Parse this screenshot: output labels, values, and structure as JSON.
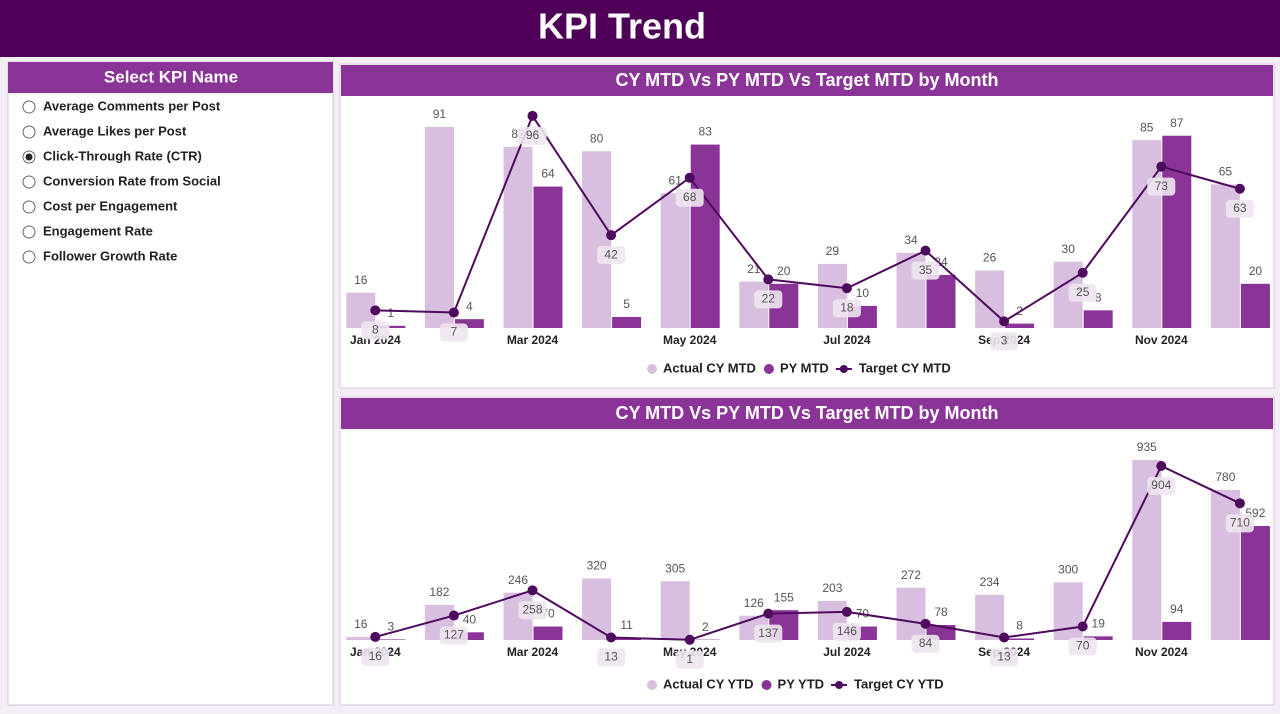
{
  "header": {
    "title": "KPI Trend"
  },
  "slicer": {
    "title": "Select KPI Name",
    "options": [
      "Average Comments per Post",
      "Average Likes per Post",
      "Click-Through Rate (CTR)",
      "Conversion Rate from Social",
      "Cost per Engagement",
      "Engagement Rate",
      "Follower Growth Rate"
    ],
    "selected": 2
  },
  "chart_data": [
    {
      "type": "combo",
      "title": "CY MTD Vs PY MTD Vs Target MTD by Month",
      "categories": [
        "Jan 2024",
        null,
        "Mar 2024",
        null,
        "May 2024",
        null,
        "Jul 2024",
        null,
        "Sep 2024",
        null,
        "Nov 2024",
        null
      ],
      "ylim": [
        0,
        100
      ],
      "series": [
        {
          "name": "Actual CY MTD",
          "type": "bar",
          "color": "#d8bfe0",
          "values": [
            16,
            91,
            82,
            80,
            61,
            21,
            29,
            34,
            26,
            30,
            85,
            65
          ]
        },
        {
          "name": "PY MTD",
          "type": "bar",
          "color": "#8a3498",
          "values": [
            1,
            4,
            64,
            5,
            83,
            20,
            10,
            24,
            2,
            8,
            87,
            20
          ]
        },
        {
          "name": "Target CY MTD",
          "type": "line",
          "color": "#4e0a5c",
          "values": [
            8,
            7,
            96,
            42,
            68,
            22,
            18,
            35,
            3,
            25,
            73,
            63
          ]
        }
      ]
    },
    {
      "type": "combo",
      "title": "CY MTD Vs PY MTD Vs Target MTD by Month",
      "categories": [
        "Jan 2024",
        null,
        "Mar 2024",
        null,
        "May 2024",
        null,
        "Jul 2024",
        null,
        "Sep 2024",
        null,
        "Nov 2024",
        null
      ],
      "ylim": [
        0,
        1000
      ],
      "series": [
        {
          "name": "Actual CY YTD",
          "type": "bar",
          "color": "#d8bfe0",
          "values": [
            16,
            182,
            246,
            320,
            305,
            126,
            203,
            272,
            234,
            300,
            935,
            780
          ]
        },
        {
          "name": "PY YTD",
          "type": "bar",
          "color": "#8a3498",
          "values": [
            3,
            40,
            70,
            11,
            2,
            155,
            70,
            78,
            8,
            19,
            94,
            592
          ]
        },
        {
          "name": "Target CY YTD",
          "type": "line",
          "color": "#4e0a5c",
          "values": [
            16,
            127,
            258,
            13,
            1,
            137,
            146,
            84,
            13,
            70,
            904,
            710
          ]
        }
      ]
    }
  ]
}
